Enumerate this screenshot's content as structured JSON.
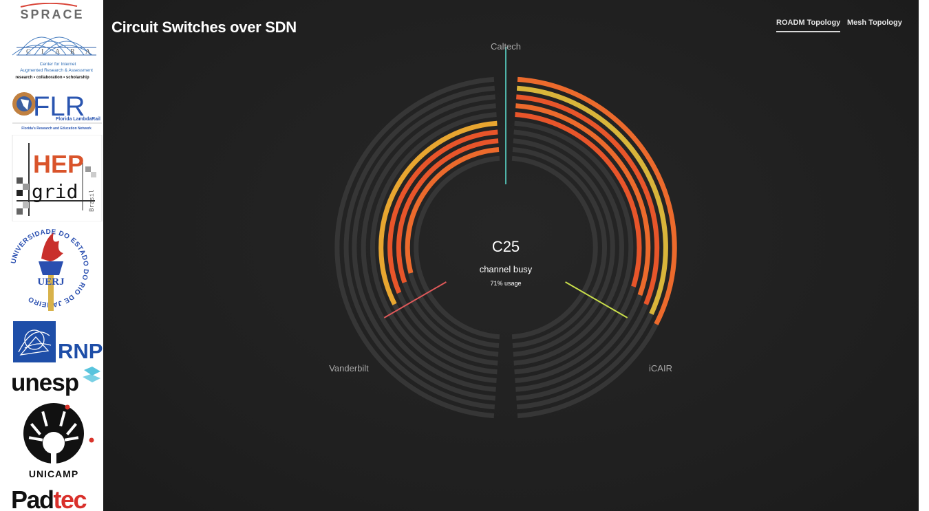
{
  "header": {
    "title": "Circuit Switches over SDN",
    "tabs": [
      {
        "label": "ROADM Topology",
        "active": true
      },
      {
        "label": "Mesh Topology",
        "active": false
      }
    ]
  },
  "center": {
    "channel": "C25",
    "status": "channel busy",
    "usage": "71% usage"
  },
  "nodes": [
    {
      "name": "Caltech",
      "color": "#4fb3a8"
    },
    {
      "name": "Vanderbilt",
      "color": "#e0595a"
    },
    {
      "name": "iCAIR",
      "color": "#c9de4a"
    }
  ],
  "ring": {
    "track_color": "#363636",
    "busy_colors": [
      "#e8552a",
      "#ec6a2c",
      "#e8a630",
      "#d9b53a"
    ]
  },
  "logos": {
    "sprace": "SPRACE",
    "ciara_letters": [
      "C",
      "I",
      "A",
      "R",
      "A"
    ],
    "ciara_line1": "Center for Internet",
    "ciara_line2": "Augmented Research & Assessment",
    "ciara_line3": "research • collaboration • scholarship",
    "flr": "FLR",
    "flr_sub": "Florida LambdaRail",
    "flr_caption": "Florida's Research and Education Network",
    "hep_top": "HEP",
    "hep_bottom": "grid",
    "hep_side": "Brasil",
    "uerj_center": "UERJ",
    "uerj_ring": "UNIVERSIDADE DO ESTADO DO RIO DE JANEIRO",
    "rnp": "RNP",
    "unesp": "unesp",
    "unicamp": "UNICAMP",
    "padtec_a": "Pad",
    "padtec_b": "tec"
  }
}
